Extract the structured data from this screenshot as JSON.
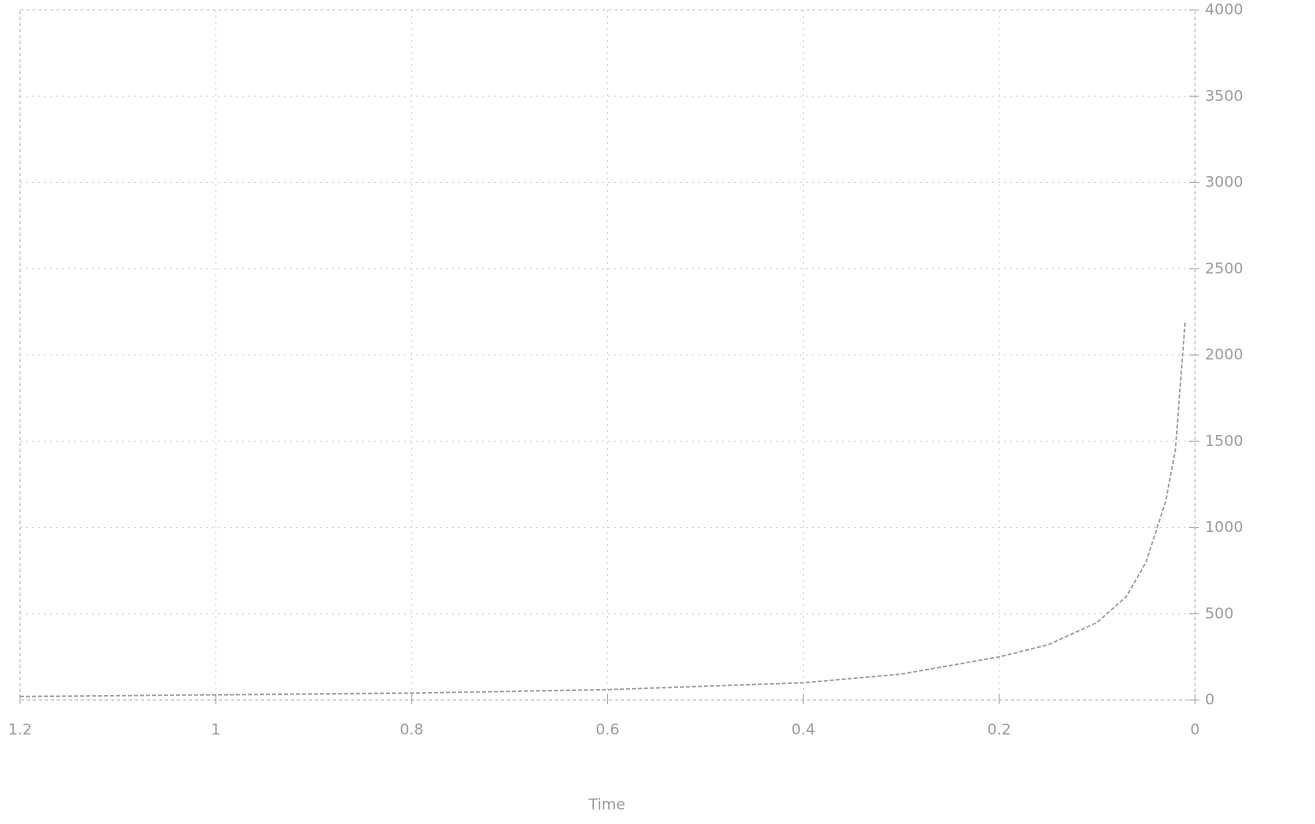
{
  "chart_data": {
    "type": "line",
    "xlabel": "Time",
    "x": [
      1.2,
      1.0,
      0.8,
      0.6,
      0.4,
      0.3,
      0.2,
      0.15,
      0.1,
      0.07,
      0.05,
      0.03,
      0.02,
      0.01
    ],
    "series": [
      {
        "color": "#9a9a9a",
        "values": [
          20,
          30,
          40,
          60,
          100,
          150,
          250,
          320,
          450,
          600,
          800,
          1150,
          1450,
          2200
        ]
      }
    ],
    "xlim": [
      1.2,
      0
    ],
    "xticks": [
      1.2,
      1,
      0.8,
      0.6,
      0.4,
      0.2,
      0
    ],
    "ylim": [
      0,
      4000
    ],
    "yticks": [
      0,
      500,
      1000,
      1500,
      2000,
      2500,
      3000,
      3500,
      4000
    ],
    "grid": true
  }
}
